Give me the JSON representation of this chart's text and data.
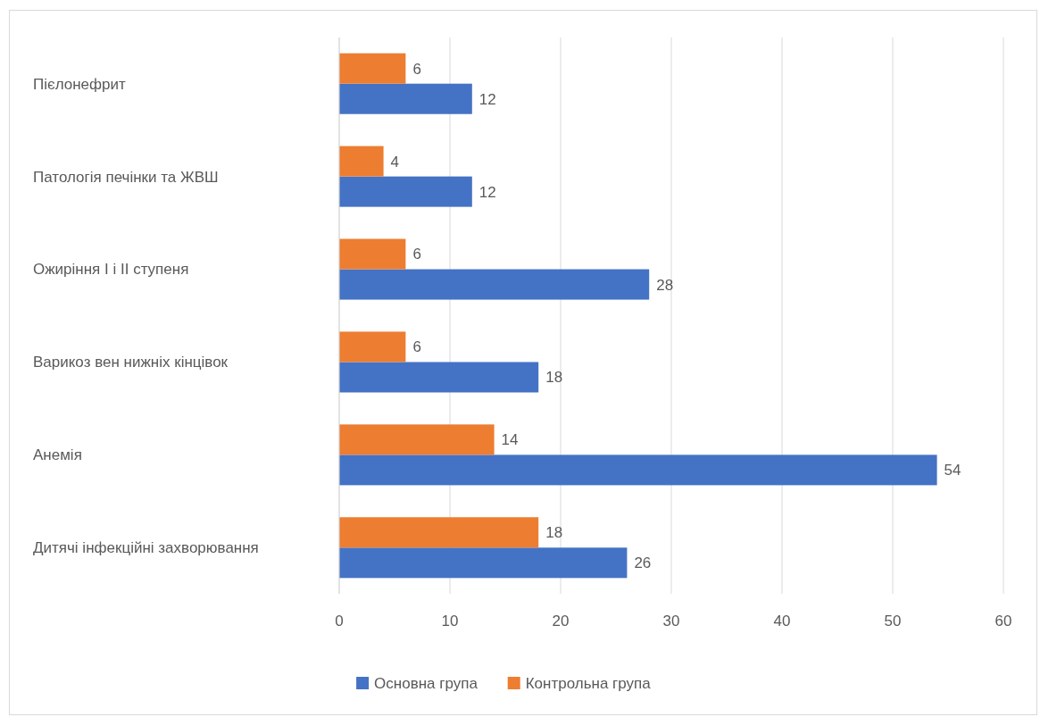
{
  "chart_data": {
    "type": "bar",
    "orientation": "horizontal",
    "categories": [
      "Пієлонефрит",
      "Патологія печінки та ЖВШ",
      "Ожиріння І і ІІ ступеня",
      "Варикоз вен нижніх кінцівок",
      "Анемія",
      "Дитячі інфекційні захворювання"
    ],
    "series": [
      {
        "name": "Основна група",
        "color": "#4472c4",
        "values": [
          12,
          12,
          28,
          18,
          54,
          26
        ]
      },
      {
        "name": "Контрольна група",
        "color": "#ed7d31",
        "values": [
          6,
          4,
          6,
          6,
          14,
          18
        ]
      }
    ],
    "xlim": [
      0,
      60
    ],
    "xticks": [
      0,
      10,
      20,
      30,
      40,
      50,
      60
    ],
    "grid": "x",
    "legend": "bottom",
    "data_labels": true
  }
}
